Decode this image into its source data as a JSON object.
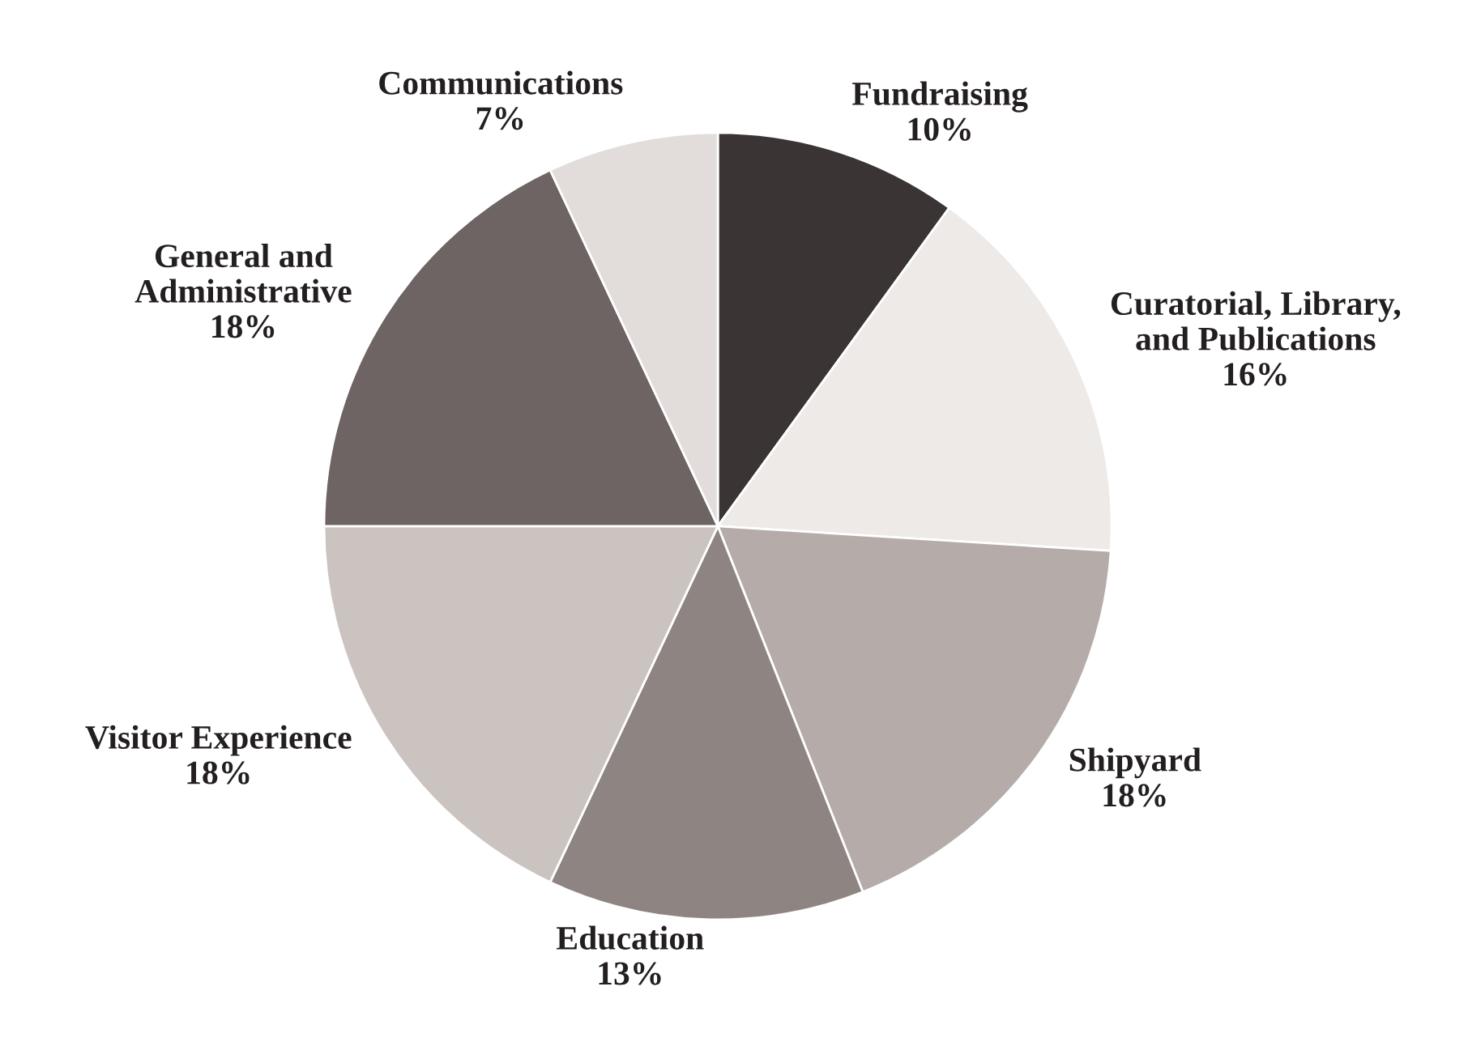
{
  "chart_data": {
    "type": "pie",
    "categories": [
      "Fundraising",
      "Curatorial, Library,\nand Publications",
      "Shipyard",
      "Education",
      "Visitor Experience",
      "General and\nAdministrative",
      "Communications"
    ],
    "values": [
      10,
      16,
      18,
      13,
      18,
      18,
      7
    ],
    "value_labels": [
      "10%",
      "16%",
      "18%",
      "13%",
      "18%",
      "18%",
      "7%"
    ],
    "colors": [
      "#3a3434",
      "#eeeae8",
      "#b5aca9",
      "#8e8482",
      "#cbc3c0",
      "#6e6463",
      "#e2dcda"
    ]
  }
}
